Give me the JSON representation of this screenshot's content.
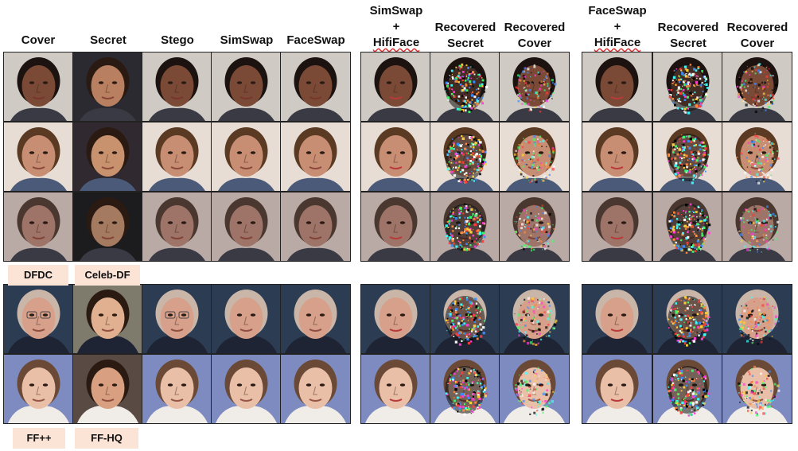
{
  "headers": {
    "cover": "Cover",
    "secret": "Secret",
    "stego": "Stego",
    "simswap": "SimSwap",
    "faceswap": "FaceSwap",
    "simswap_hifi": {
      "l1": "SimSwap",
      "l2": "+",
      "l3": "HifiFace"
    },
    "rec_secret_1": {
      "l1": "Recovered",
      "l2": "Secret"
    },
    "rec_cover_1": {
      "l1": "Recovered",
      "l2": "Cover"
    },
    "faceswap_hifi": {
      "l1": "FaceSwap",
      "l2": "+",
      "l3": "HifiFace"
    },
    "rec_secret_2": {
      "l1": "Recovered",
      "l2": "Secret"
    },
    "rec_cover_2": {
      "l1": "Recovered",
      "l2": "Cover"
    }
  },
  "dataset_labels": {
    "dfdc": "DFDC",
    "celeb_df": "Celeb-DF",
    "ffpp": "FF++",
    "ffhq": "FF-HQ"
  },
  "colors": {
    "tag_bg": "#fbe3d6",
    "squiggle": "#d33"
  }
}
